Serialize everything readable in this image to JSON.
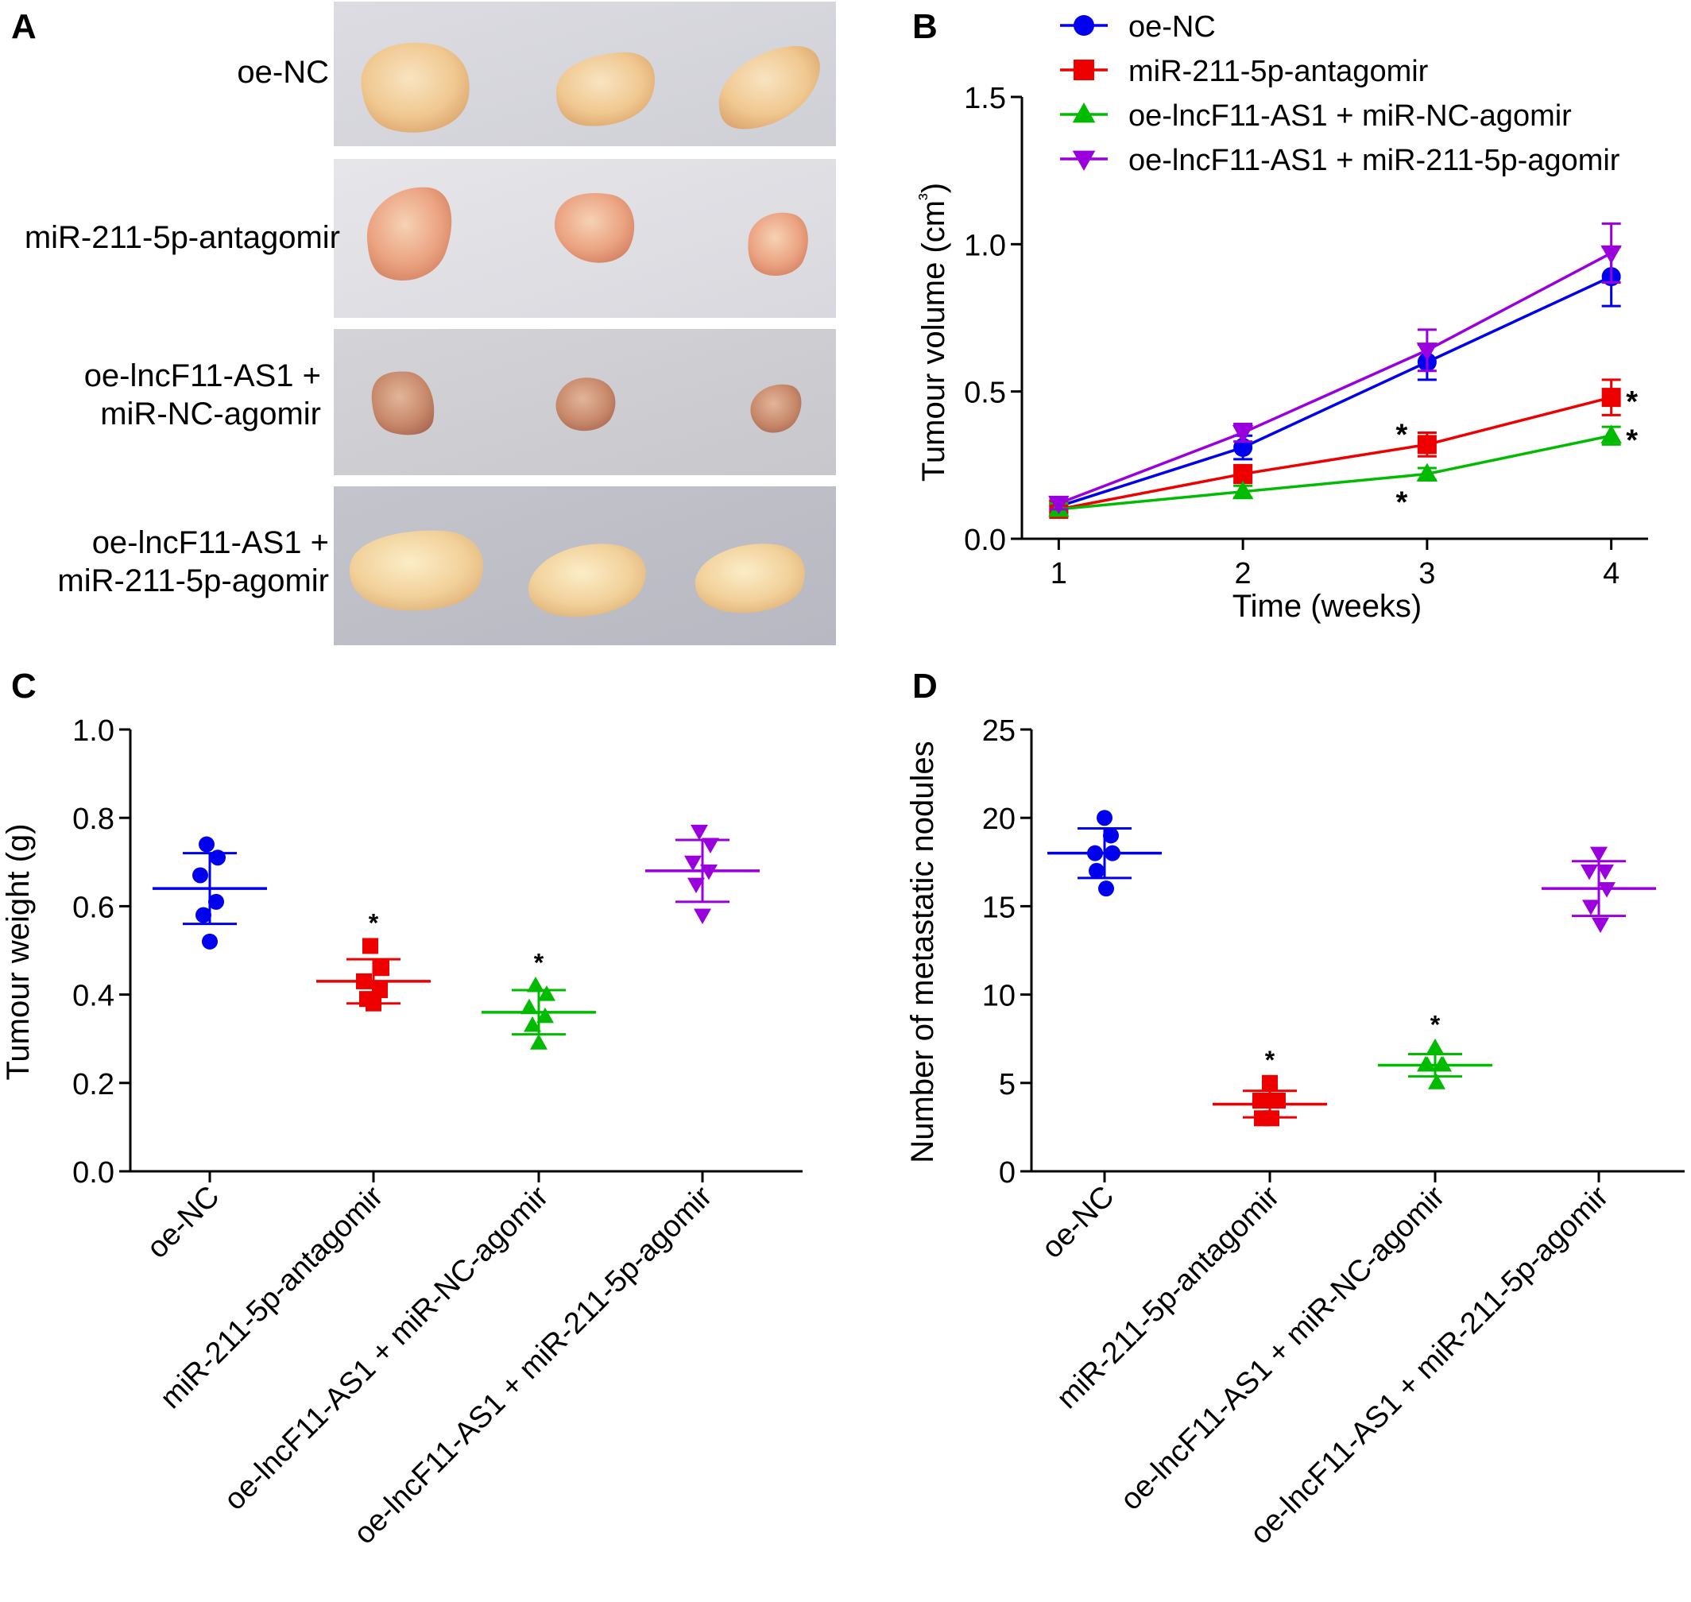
{
  "panels": {
    "A": {
      "letter": "A",
      "groups": [
        "oe-NC",
        "miR-211-5p-antagomir",
        "oe-lncF11-AS1 +\nmiR-NC-agomir",
        "oe-lncF11-AS1 +\nmiR-211-5p-agomir"
      ]
    },
    "B": {
      "letter": "B"
    },
    "C": {
      "letter": "C"
    },
    "D": {
      "letter": "D"
    }
  },
  "colors": {
    "blue": "#0000ee",
    "red": "#ee0000",
    "green": "#00bb00",
    "purple": "#9900dd"
  },
  "chart_data": [
    {
      "panel": "B",
      "type": "line",
      "xlabel": "Time (weeks)",
      "ylabel": "Tumour volume (cm³)",
      "x": [
        1,
        2,
        3,
        4
      ],
      "xticks": [
        "1",
        "2",
        "3",
        "4"
      ],
      "xlim": [
        0.8,
        4.2
      ],
      "ylim": [
        0,
        1.5
      ],
      "yticks": [
        "0.0",
        "0.5",
        "1.0",
        "1.5"
      ],
      "legend_position": "top",
      "series": [
        {
          "name": "oe-NC",
          "marker": "circle",
          "color": "#0000ee",
          "values": [
            0.11,
            0.31,
            0.6,
            0.89
          ],
          "errors": [
            0.02,
            0.04,
            0.06,
            0.1
          ],
          "sig": [
            false,
            false,
            false,
            false
          ]
        },
        {
          "name": "miR-211-5p-antagomir",
          "marker": "square",
          "color": "#ee0000",
          "values": [
            0.1,
            0.22,
            0.32,
            0.48
          ],
          "errors": [
            0.02,
            0.03,
            0.04,
            0.06
          ],
          "sig": [
            false,
            false,
            true,
            true
          ]
        },
        {
          "name": "oe-lncF11-AS1 + miR-NC-agomir",
          "marker": "triangle-up",
          "color": "#00bb00",
          "values": [
            0.1,
            0.16,
            0.22,
            0.35
          ],
          "errors": [
            0.02,
            0.02,
            0.02,
            0.03
          ],
          "sig": [
            false,
            false,
            true,
            true
          ]
        },
        {
          "name": "oe-lncF11-AS1 + miR-211-5p-agomir",
          "marker": "triangle-down",
          "color": "#9900dd",
          "values": [
            0.12,
            0.36,
            0.64,
            0.97
          ],
          "errors": [
            0.02,
            0.03,
            0.07,
            0.1
          ],
          "sig": [
            false,
            false,
            false,
            false
          ]
        }
      ],
      "annotation": "*"
    },
    {
      "panel": "C",
      "type": "scatter",
      "ylabel": "Tumour weight (g)",
      "ylim": [
        0,
        1.0
      ],
      "yticks": [
        "0.0",
        "0.2",
        "0.4",
        "0.6",
        "0.8",
        "1.0"
      ],
      "categories": [
        "oe-NC",
        "miR-211-5p-antagomir",
        "oe-lncF11-AS1 + miR-NC-agomir",
        "oe-lncF11-AS1 + miR-211-5p-agomir"
      ],
      "groups": [
        {
          "marker": "circle",
          "color": "#0000ee",
          "points": [
            0.74,
            0.71,
            0.67,
            0.61,
            0.58,
            0.52
          ],
          "mean": 0.64,
          "sd": 0.08,
          "sig": false
        },
        {
          "marker": "square",
          "color": "#ee0000",
          "points": [
            0.51,
            0.46,
            0.43,
            0.41,
            0.39,
            0.38
          ],
          "mean": 0.43,
          "sd": 0.05,
          "sig": true
        },
        {
          "marker": "triangle-up",
          "color": "#00bb00",
          "points": [
            0.42,
            0.4,
            0.37,
            0.35,
            0.33,
            0.29
          ],
          "mean": 0.36,
          "sd": 0.05,
          "sig": true
        },
        {
          "marker": "triangle-down",
          "color": "#9900dd",
          "points": [
            0.77,
            0.74,
            0.7,
            0.68,
            0.65,
            0.58
          ],
          "mean": 0.68,
          "sd": 0.07,
          "sig": false
        }
      ],
      "annotation": "*"
    },
    {
      "panel": "D",
      "type": "scatter",
      "ylabel": "Number of metastatic nodules",
      "ylim": [
        0,
        25
      ],
      "yticks": [
        "0",
        "5",
        "10",
        "15",
        "20",
        "25"
      ],
      "categories": [
        "oe-NC",
        "miR-211-5p-antagomir",
        "oe-lncF11-AS1 + miR-NC-agomir",
        "oe-lncF11-AS1 + miR-211-5p-agomir"
      ],
      "groups": [
        {
          "marker": "circle",
          "color": "#0000ee",
          "points": [
            20,
            19,
            18,
            18,
            17,
            16
          ],
          "mean": 18,
          "sd": 1.4,
          "sig": false
        },
        {
          "marker": "square",
          "color": "#ee0000",
          "points": [
            5,
            4,
            4,
            4,
            3,
            3
          ],
          "mean": 3.8,
          "sd": 0.75,
          "sig": true
        },
        {
          "marker": "triangle-up",
          "color": "#00bb00",
          "points": [
            7,
            6,
            6,
            6,
            6,
            5
          ],
          "mean": 6,
          "sd": 0.63,
          "sig": true
        },
        {
          "marker": "triangle-down",
          "color": "#9900dd",
          "points": [
            18,
            17,
            17,
            16,
            15,
            14
          ],
          "mean": 16,
          "sd": 1.55,
          "sig": false
        }
      ],
      "annotation": "*"
    }
  ]
}
